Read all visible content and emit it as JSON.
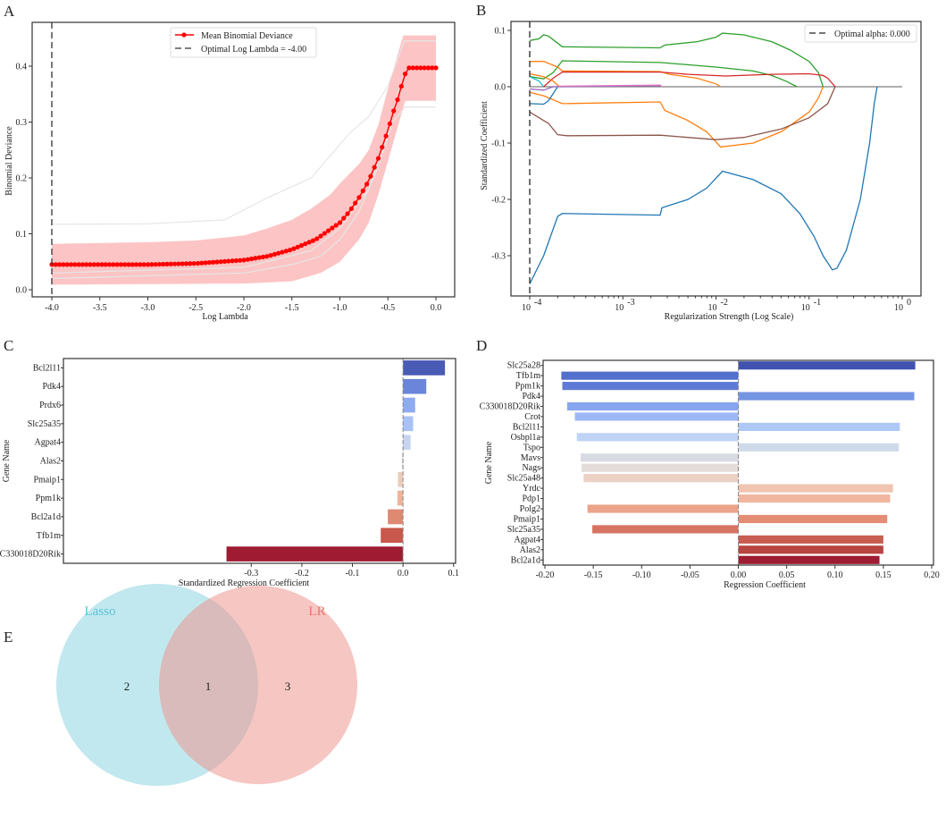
{
  "panels": {
    "a": "A",
    "b": "B",
    "c": "C",
    "d": "D",
    "e": "E"
  },
  "chart_data": [
    {
      "type": "line",
      "id": "A",
      "xlabel": "Log Lambda",
      "ylabel": "Binomial Deviance",
      "xlim": [
        -4.2,
        0.2
      ],
      "ylim": [
        -0.013,
        0.47
      ],
      "xticks": [
        "-4.0",
        "-3.5",
        "-3.0",
        "-2.5",
        "-2.0",
        "-1.5",
        "-1.0",
        "-0.5",
        "0.0"
      ],
      "yticks": [
        "0.0",
        "0.1",
        "0.2",
        "0.3",
        "0.4"
      ],
      "legend": {
        "placement": "top-center",
        "entries": [
          "Mean Binomial Deviance",
          "Optimal Log Lambda = -4.00"
        ]
      },
      "optimal_log_lambda": -4.0,
      "mean": [
        [
          -4,
          0.045
        ],
        [
          -3,
          0.045
        ],
        [
          -2.5,
          0.047
        ],
        [
          -2,
          0.053
        ],
        [
          -1.75,
          0.06
        ],
        [
          -1.5,
          0.072
        ],
        [
          -1.25,
          0.09
        ],
        [
          -1,
          0.12
        ],
        [
          -0.9,
          0.14
        ],
        [
          -0.8,
          0.165
        ],
        [
          -0.7,
          0.195
        ],
        [
          -0.6,
          0.235
        ],
        [
          -0.5,
          0.285
        ],
        [
          -0.45,
          0.315
        ],
        [
          -0.4,
          0.34
        ],
        [
          -0.35,
          0.37
        ],
        [
          -0.3,
          0.397
        ],
        [
          0,
          0.397
        ]
      ],
      "band_upper": [
        [
          -4,
          0.082
        ],
        [
          -3,
          0.085
        ],
        [
          -2.5,
          0.088
        ],
        [
          -2,
          0.097
        ],
        [
          -1.75,
          0.11
        ],
        [
          -1.5,
          0.125
        ],
        [
          -1.3,
          0.145
        ],
        [
          -1.1,
          0.17
        ],
        [
          -1,
          0.19
        ],
        [
          -0.8,
          0.225
        ],
        [
          -0.7,
          0.25
        ],
        [
          -0.6,
          0.295
        ],
        [
          -0.5,
          0.36
        ],
        [
          -0.4,
          0.42
        ],
        [
          -0.34,
          0.455
        ],
        [
          0,
          0.455
        ]
      ],
      "band_lower": [
        [
          -4,
          0.009
        ],
        [
          -2,
          0.011
        ],
        [
          -1.5,
          0.015
        ],
        [
          -1.2,
          0.03
        ],
        [
          -1,
          0.05
        ],
        [
          -0.8,
          0.09
        ],
        [
          -0.7,
          0.12
        ],
        [
          -0.6,
          0.17
        ],
        [
          -0.5,
          0.23
        ],
        [
          -0.4,
          0.29
        ],
        [
          -0.32,
          0.338
        ],
        [
          0,
          0.338
        ]
      ],
      "fold_curves": [
        [
          [
            -4,
            0.117
          ],
          [
            -3,
            0.118
          ],
          [
            -2.2,
            0.125
          ],
          [
            -1.75,
            0.165
          ],
          [
            -1.3,
            0.2
          ],
          [
            -1.1,
            0.24
          ],
          [
            -0.9,
            0.28
          ],
          [
            -0.7,
            0.31
          ],
          [
            -0.5,
            0.365
          ],
          [
            -0.33,
            0.445
          ],
          [
            0,
            0.445
          ]
        ],
        [
          [
            -4,
            0.02
          ],
          [
            -2,
            0.03
          ],
          [
            -1.5,
            0.045
          ],
          [
            -1.2,
            0.06
          ],
          [
            -1,
            0.09
          ],
          [
            -0.8,
            0.14
          ],
          [
            -0.6,
            0.22
          ],
          [
            -0.45,
            0.3
          ],
          [
            -0.32,
            0.327
          ],
          [
            0,
            0.327
          ]
        ],
        [
          [
            -4,
            0.03
          ],
          [
            -2,
            0.04
          ],
          [
            -1.3,
            0.07
          ],
          [
            -1,
            0.11
          ],
          [
            -0.7,
            0.18
          ],
          [
            -0.5,
            0.28
          ],
          [
            -0.4,
            0.35
          ],
          [
            -0.32,
            0.39
          ]
        ]
      ]
    },
    {
      "type": "line",
      "id": "B",
      "xlabel": "Regularization Strength (Log Scale)",
      "ylabel": "Standardized Coefficient",
      "xscale": "log",
      "xlim_log10": [
        -4.2,
        0.2
      ],
      "ylim": [
        -0.37,
        0.11
      ],
      "xticks": [
        "10^-4",
        "10^-3",
        "10^-2",
        "10^-1",
        "10^0"
      ],
      "yticks": [
        "0.1",
        "0.0",
        "-0.1",
        "-0.2",
        "-0.3"
      ],
      "legend": {
        "placement": "top-right",
        "entries": [
          "Optimal alpha: 0.000"
        ]
      },
      "series": [
        {
          "color": "#7f7f7f",
          "points": [
            [
              -4,
              0
            ],
            [
              0,
              0
            ]
          ]
        },
        {
          "color": "#1f77b4",
          "points": [
            [
              -4,
              -0.35
            ],
            [
              -3.85,
              -0.3
            ],
            [
              -3.7,
              -0.23
            ],
            [
              -3.65,
              -0.225
            ],
            [
              -2.6,
              -0.228
            ],
            [
              -2.58,
              -0.215
            ],
            [
              -2.3,
              -0.2
            ],
            [
              -2.1,
              -0.18
            ],
            [
              -1.93,
              -0.15
            ],
            [
              -1.6,
              -0.165
            ],
            [
              -1.3,
              -0.19
            ],
            [
              -1.1,
              -0.225
            ],
            [
              -0.95,
              -0.265
            ],
            [
              -0.85,
              -0.3
            ],
            [
              -0.75,
              -0.325
            ],
            [
              -0.7,
              -0.322
            ],
            [
              -0.6,
              -0.29
            ],
            [
              -0.45,
              -0.2
            ],
            [
              -0.35,
              -0.1
            ],
            [
              -0.3,
              -0.03
            ],
            [
              -0.27,
              0
            ]
          ]
        },
        {
          "color": "#2ca02c",
          "points": [
            [
              -4,
              0.082
            ],
            [
              -3.9,
              0.085
            ],
            [
              -3.85,
              0.092
            ],
            [
              -3.8,
              0.09
            ],
            [
              -3.65,
              0.071
            ],
            [
              -2.6,
              0.069
            ],
            [
              -2.55,
              0.074
            ],
            [
              -2.2,
              0.08
            ],
            [
              -2,
              0.088
            ],
            [
              -1.93,
              0.095
            ],
            [
              -1.7,
              0.092
            ],
            [
              -1.4,
              0.08
            ],
            [
              -1.2,
              0.065
            ],
            [
              -1,
              0.045
            ],
            [
              -0.9,
              0.025
            ],
            [
              -0.85,
              0
            ]
          ]
        },
        {
          "color": "#2ca02c",
          "points": [
            [
              -4,
              0.018
            ],
            [
              -3.85,
              0.014
            ],
            [
              -3.75,
              0.025
            ],
            [
              -3.65,
              0.046
            ],
            [
              -2.6,
              0.043
            ],
            [
              -2,
              0.035
            ],
            [
              -1.6,
              0.028
            ],
            [
              -1.4,
              0.02
            ],
            [
              -1.25,
              0.01
            ],
            [
              -1.13,
              0
            ]
          ]
        },
        {
          "color": "#ff7f0e",
          "points": [
            [
              -4,
              0.045
            ],
            [
              -3.85,
              0.045
            ],
            [
              -3.7,
              0.035
            ],
            [
              -3.65,
              0.028
            ],
            [
              -2.6,
              0.027
            ],
            [
              -2.5,
              0.022
            ],
            [
              -2.2,
              0.015
            ],
            [
              -2,
              0.005
            ],
            [
              -1.95,
              0
            ]
          ]
        },
        {
          "color": "#d62728",
          "points": [
            [
              -3.85,
              0
            ],
            [
              -3.75,
              0.015
            ],
            [
              -3.65,
              0.026
            ],
            [
              -2.6,
              0.026
            ],
            [
              -2.3,
              0.022
            ],
            [
              -1.9,
              0.019
            ],
            [
              -1.4,
              0.022
            ],
            [
              -1,
              0.023
            ],
            [
              -0.85,
              0.02
            ],
            [
              -0.8,
              0.015
            ],
            [
              -0.72,
              0
            ]
          ]
        },
        {
          "color": "#ff7f0e",
          "points": [
            [
              -4,
              0.023
            ],
            [
              -3.85,
              0.018
            ],
            [
              -3.75,
              0.01
            ],
            [
              -3.68,
              0
            ]
          ]
        },
        {
          "color": "#ff7f0e",
          "points": [
            [
              -4,
              -0.01
            ],
            [
              -3.85,
              -0.016
            ],
            [
              -3.65,
              -0.03
            ],
            [
              -2.6,
              -0.027
            ],
            [
              -2.55,
              -0.042
            ],
            [
              -2.3,
              -0.06
            ],
            [
              -2.1,
              -0.08
            ],
            [
              -1.95,
              -0.107
            ],
            [
              -1.6,
              -0.1
            ],
            [
              -1.3,
              -0.08
            ],
            [
              -1,
              -0.045
            ],
            [
              -0.9,
              -0.02
            ],
            [
              -0.85,
              0
            ]
          ]
        },
        {
          "color": "#8c564b",
          "points": [
            [
              -4,
              -0.045
            ],
            [
              -3.85,
              -0.06
            ],
            [
              -3.8,
              -0.065
            ],
            [
              -3.7,
              -0.085
            ],
            [
              -3.6,
              -0.087
            ],
            [
              -2.6,
              -0.086
            ],
            [
              -2,
              -0.094
            ],
            [
              -1.7,
              -0.09
            ],
            [
              -1.3,
              -0.075
            ],
            [
              -1,
              -0.055
            ],
            [
              -0.8,
              -0.03
            ],
            [
              -0.72,
              0
            ]
          ]
        },
        {
          "color": "#1f77b4",
          "points": [
            [
              -4,
              -0.03
            ],
            [
              -3.85,
              -0.031
            ],
            [
              -3.8,
              -0.025
            ],
            [
              -3.7,
              0
            ]
          ]
        },
        {
          "color": "#17becf",
          "points": [
            [
              -4,
              0.018
            ],
            [
              -3.9,
              0.01
            ],
            [
              -3.85,
              0
            ]
          ]
        },
        {
          "color": "#9467bd",
          "points": [
            [
              -4,
              -0.004
            ],
            [
              -3.85,
              -0.006
            ],
            [
              -3.75,
              0
            ],
            [
              -2.6,
              0.002
            ],
            [
              -2.58,
              0
            ]
          ]
        },
        {
          "color": "#e377c2",
          "points": [
            [
              -3.7,
              0.001
            ],
            [
              -2.6,
              0.003
            ],
            [
              -2.58,
              0
            ]
          ]
        }
      ]
    },
    {
      "type": "bar",
      "id": "C",
      "orientation": "horizontal",
      "xlabel": "Standardized Regression Coefficient",
      "ylabel": "Gene Name",
      "xlim": [
        -0.365,
        0.105
      ],
      "xticks": [
        "-0.3",
        "-0.2",
        "-0.1",
        "0.0",
        "0.1"
      ],
      "categories": [
        "Bcl2l11",
        "Pdk4",
        "Prdx6",
        "Slc25a35",
        "Agpat4",
        "Alas2",
        "Pmaip1",
        "Ppm1k",
        "Bcl2a1d",
        "Tfb1m",
        "C330018D20Rik"
      ],
      "values": [
        0.083,
        0.046,
        0.024,
        0.02,
        0.015,
        -0.002,
        -0.01,
        -0.011,
        -0.03,
        -0.044,
        -0.349
      ],
      "colors": [
        "#4a5bb5",
        "#6a85d9",
        "#8eaaf0",
        "#a9c2f5",
        "#c6d4ef",
        "#d9d9dd",
        "#ecccbc",
        "#eeb49c",
        "#de8a72",
        "#c8584b",
        "#9e1b32"
      ]
    },
    {
      "type": "bar",
      "id": "D",
      "orientation": "horizontal",
      "xlabel": "Regression Coefficient",
      "ylabel": "Gene Name",
      "xlim": [
        -0.2,
        0.2
      ],
      "xticks": [
        "-0.20",
        "-0.15",
        "-0.10",
        "-0.05",
        "0.00",
        "0.05",
        "0.10",
        "0.15",
        "0.20"
      ],
      "categories": [
        "Slc25a28",
        "Tfb1m",
        "Ppm1k",
        "Pdk4",
        "C330018D20Rik",
        "Crot",
        "Bcl2l11",
        "Osbpl1a",
        "Tspo",
        "Mavs",
        "Nags",
        "Slc25a48",
        "Yrdc",
        "Pdp1",
        "Polg2",
        "Pmaip1",
        "Slc25a35",
        "Agpat4",
        "Alas2",
        "Bcl2a1d"
      ],
      "values": [
        0.183,
        -0.183,
        -0.182,
        0.182,
        -0.177,
        -0.169,
        0.167,
        -0.167,
        0.166,
        -0.163,
        -0.162,
        -0.16,
        0.16,
        0.157,
        -0.156,
        0.154,
        -0.151,
        0.15,
        0.15,
        0.146
      ],
      "colors": [
        "#3f52b0",
        "#5470cd",
        "#5f7ad6",
        "#7595e3",
        "#86a5ee",
        "#9bb8f5",
        "#adc8f7",
        "#bfd3f5",
        "#cfdaea",
        "#d9dbe2",
        "#e3dcd8",
        "#ecd1c4",
        "#f0c4b1",
        "#f0b69f",
        "#eba38a",
        "#e38d74",
        "#d77462",
        "#c85c50",
        "#b8433f",
        "#9e1b32"
      ]
    },
    {
      "type": "venn",
      "id": "E",
      "sets": [
        {
          "label": "Lasso",
          "color": "#67c5d6",
          "only": 2
        },
        {
          "label": "LR",
          "color": "#ee8d85",
          "only": 3
        }
      ],
      "intersection": 1
    }
  ]
}
